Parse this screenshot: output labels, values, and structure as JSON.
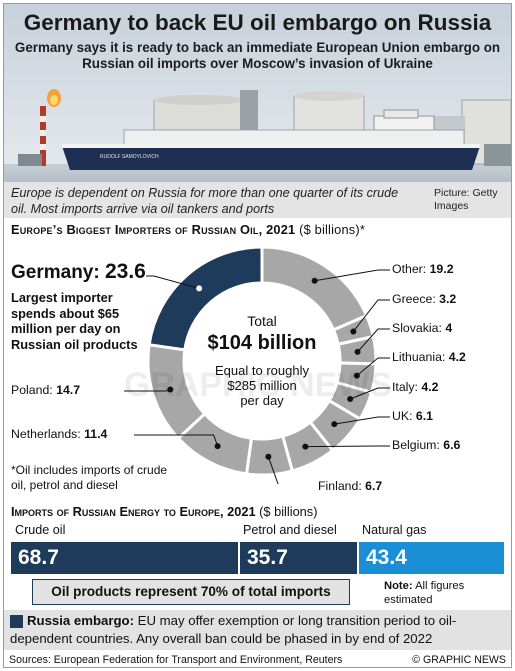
{
  "header": {
    "title": "Germany to back EU oil embargo on Russia",
    "subtitle": "Germany says it is ready to back an immediate European Union embargo on Russian oil imports over Moscow’s invasion of Ukraine",
    "ship_name": "RUDOLF SAMOYLOVICH"
  },
  "caption": {
    "text": "Europe is dependent on Russia for more than one quarter of its crude oil. Most imports arrive via oil tankers and ports",
    "credit": "Picture: Getty Images"
  },
  "donut_section": {
    "heading": "Europe’s Biggest Importers of Russian Oil, 2021",
    "units": "($ billions)*",
    "center_total_label": "Total",
    "center_total_value": "$104 billion",
    "center_equal": "Equal to roughly $285 million per day",
    "germany_name": "Germany:",
    "germany_value": "23.6",
    "germany_note": "Largest importer spends about $65 million per day on Russian oil products",
    "footnote": "*Oil includes imports of crude oil, petrol and diesel"
  },
  "import_section": {
    "heading": "Imports of Russian Energy to Europe, 2021",
    "units": "($ billions)",
    "callout": "Oil products represent 70% of total imports",
    "note_bold": "Note:",
    "note_text": "All figures estimated"
  },
  "embargo": {
    "label": "Russia embargo:",
    "text": "EU may offer exemption or long transition period to oil-dependent countries. Any overall ban could be phased in by end of 2022"
  },
  "footer": {
    "sources": "Sources: European Federation for Transport and Environment, Reuters",
    "copyright": "© GRAPHIC NEWS"
  },
  "watermark": "GRAPHIC NEWS",
  "colors": {
    "navy": "#1f3b5c",
    "grey_segment": "#a7a7a7",
    "blue": "#1b8fd6",
    "bg_grey": "#e2e2e2"
  },
  "chart_data": [
    {
      "type": "pie",
      "title": "Europe’s Biggest Importers of Russian Oil, 2021",
      "units": "($ billions)*",
      "categories": [
        "Germany",
        "Other",
        "Greece",
        "Slovakia",
        "Lithuania",
        "Italy",
        "UK",
        "Belgium",
        "Finland",
        "Netherlands",
        "Poland"
      ],
      "values": [
        23.6,
        19.2,
        3.2,
        4.0,
        4.2,
        4.2,
        6.1,
        6.6,
        6.7,
        11.4,
        14.7
      ],
      "labels": [
        "Germany:",
        "Other:",
        "Greece:",
        "Slovakia:",
        "Lithuania:",
        "Italy:",
        "UK:",
        "Belgium:",
        "Finland:",
        "Netherlands:",
        "Poland:"
      ],
      "total": 104,
      "style": "donut"
    },
    {
      "type": "bar",
      "orientation": "horizontal-stacked",
      "title": "Imports of Russian Energy to Europe, 2021",
      "units": "($ billions)",
      "categories": [
        "Crude oil",
        "Petrol and diesel",
        "Natural gas"
      ],
      "values": [
        68.7,
        35.7,
        43.4
      ]
    }
  ]
}
